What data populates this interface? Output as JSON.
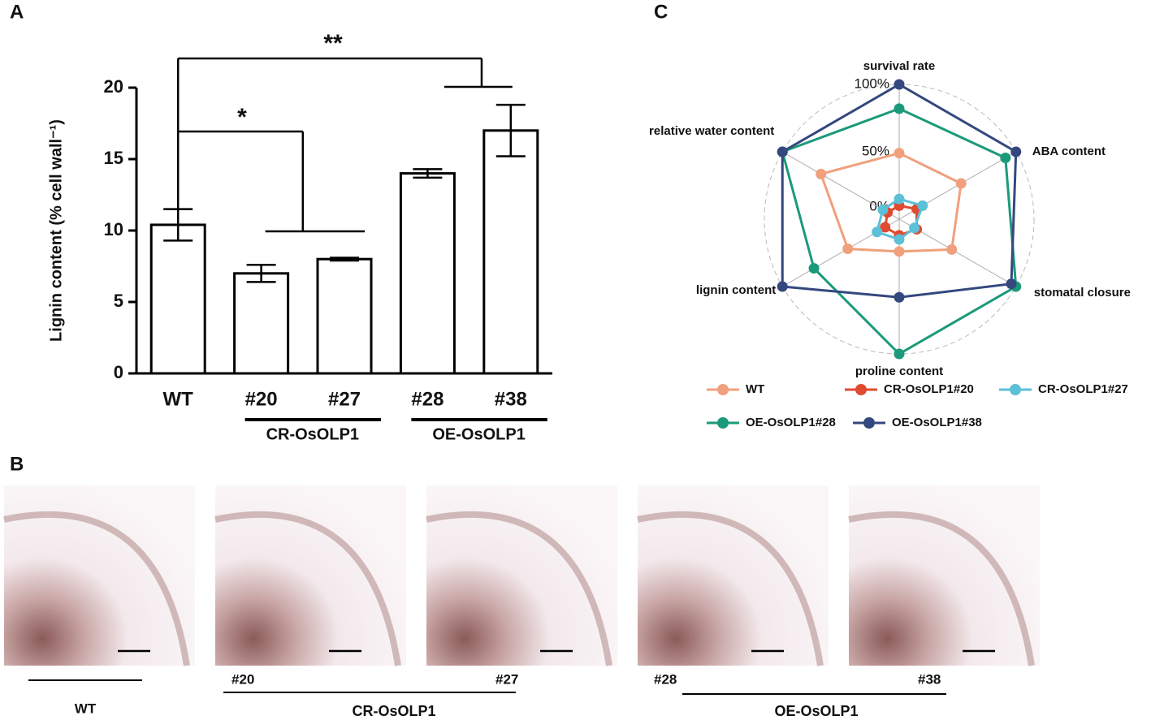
{
  "chart_data": [
    {
      "type": "bar",
      "panel": "A",
      "ylabel": "Lignin content (% cell wall⁻¹)",
      "categories": [
        "WT",
        "#20",
        "#27",
        "#28",
        "#38"
      ],
      "values": [
        10.4,
        7.0,
        8.0,
        14.0,
        17.0
      ],
      "errors": [
        1.1,
        0.6,
        0.1,
        0.3,
        1.8
      ],
      "color": "#ffffff",
      "ylim": [
        0,
        20
      ],
      "yticks": [
        0,
        5,
        10,
        15,
        20
      ],
      "groups": [
        "CR-OsOLP1",
        "OE-OsOLP1"
      ],
      "annotations": [
        "*",
        "**"
      ]
    },
    {
      "type": "radar",
      "panel": "C",
      "axes": [
        "survival rate",
        "ABA content",
        "stomatal closure",
        "proline content",
        "lignin content",
        "relative water content"
      ],
      "rlim": [
        0,
        100
      ],
      "rticks": [
        {
          "value": 0,
          "label": "0%"
        },
        {
          "value": 50,
          "label": "50%"
        },
        {
          "value": 100,
          "label": "100%"
        }
      ],
      "series": [
        {
          "name": "WT",
          "color": "#f0a07c",
          "values": [
            49,
            53,
            45,
            24,
            44,
            67
          ]
        },
        {
          "name": "CR-OsOLP1#20",
          "color": "#e04a30",
          "values": [
            10,
            15,
            15,
            12,
            12,
            10
          ]
        },
        {
          "name": "CR-OsOLP1#27",
          "color": "#5bc0d8",
          "values": [
            15,
            20,
            13,
            15,
            19,
            14
          ]
        },
        {
          "name": "OE-OsOLP1#28",
          "color": "#1a9a7a",
          "values": [
            82,
            91,
            100,
            100,
            73,
            100
          ]
        },
        {
          "name": "OE-OsOLP1#38",
          "color": "#34487e",
          "values": [
            100,
            100,
            96,
            58,
            100,
            100
          ]
        }
      ]
    }
  ],
  "panel_b": {
    "panel": "B",
    "images": [
      "WT",
      "#20",
      "#27",
      "#28",
      "#38"
    ],
    "groups": [
      "CR-OsOLP1",
      "OE-OsOLP1"
    ]
  }
}
